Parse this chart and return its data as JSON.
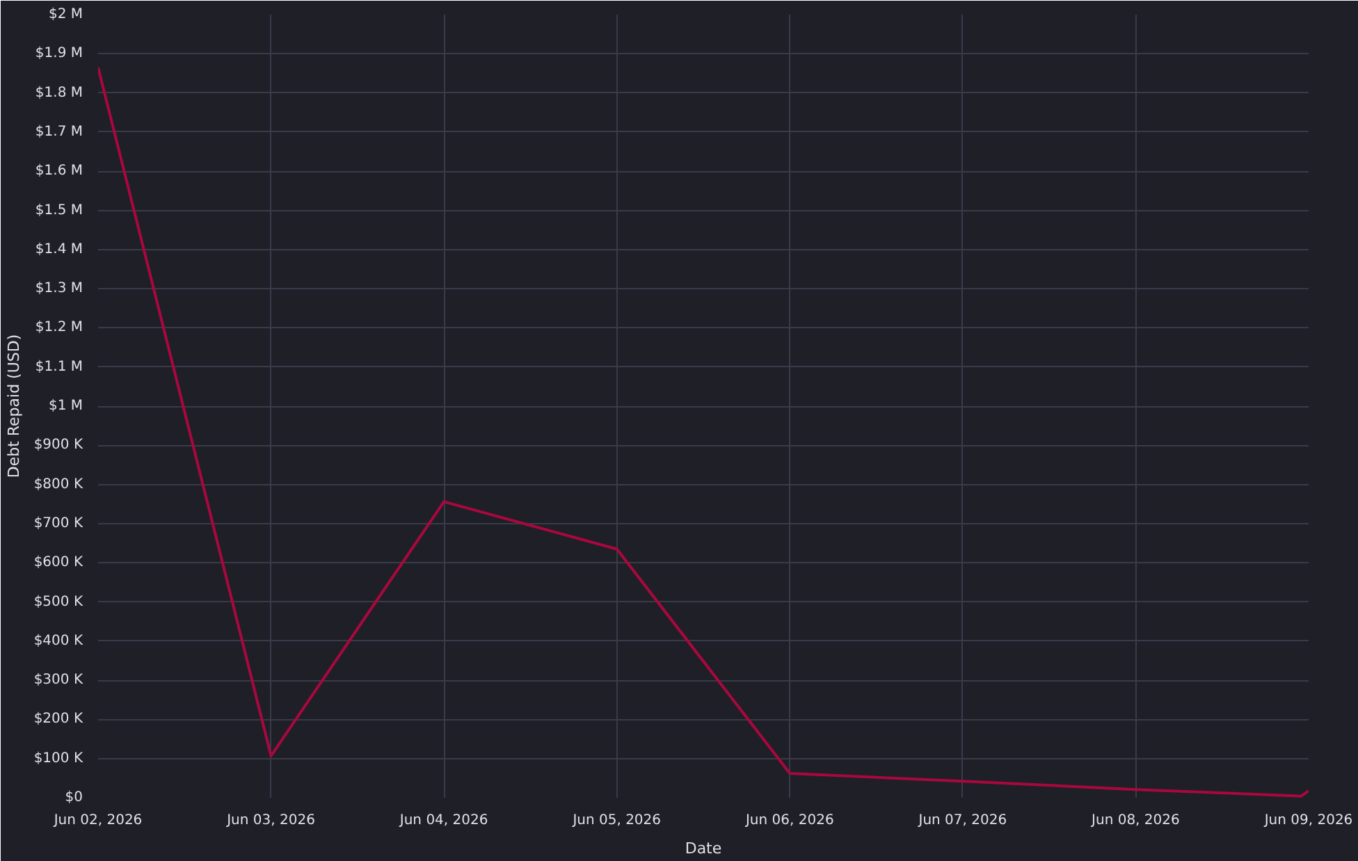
{
  "chart_data": {
    "type": "line",
    "xlabel": "Date",
    "ylabel": "Debt Repaid (USD)",
    "x": [
      "2026-06-02",
      "2026-06-03",
      "2026-06-04",
      "2026-06-05",
      "2026-06-06",
      "2026-06-07",
      "2026-06-08",
      "2026-06-08T23:00",
      "2026-06-09"
    ],
    "series": [
      {
        "color": "#a8083d",
        "values": [
          1865000,
          107000,
          756000,
          635000,
          62000,
          42000,
          21000,
          4000,
          18000
        ]
      }
    ],
    "xlim": [
      "2026-06-02",
      "2026-06-09"
    ],
    "xticks": [
      {
        "value": "2026-06-02",
        "label": "Jun 02, 2026"
      },
      {
        "value": "2026-06-03",
        "label": "Jun 03, 2026"
      },
      {
        "value": "2026-06-04",
        "label": "Jun 04, 2026"
      },
      {
        "value": "2026-06-05",
        "label": "Jun 05, 2026"
      },
      {
        "value": "2026-06-06",
        "label": "Jun 06, 2026"
      },
      {
        "value": "2026-06-07",
        "label": "Jun 07, 2026"
      },
      {
        "value": "2026-06-08",
        "label": "Jun 08, 2026"
      },
      {
        "value": "2026-06-09",
        "label": "Jun 09, 2026"
      }
    ],
    "ylim": [
      0,
      2000000
    ],
    "yticks": [
      {
        "value": 0,
        "label": "$0"
      },
      {
        "value": 100000,
        "label": "$100 K"
      },
      {
        "value": 200000,
        "label": "$200 K"
      },
      {
        "value": 300000,
        "label": "$300 K"
      },
      {
        "value": 400000,
        "label": "$400 K"
      },
      {
        "value": 500000,
        "label": "$500 K"
      },
      {
        "value": 600000,
        "label": "$600 K"
      },
      {
        "value": 700000,
        "label": "$700 K"
      },
      {
        "value": 800000,
        "label": "$800 K"
      },
      {
        "value": 900000,
        "label": "$900 K"
      },
      {
        "value": 1000000,
        "label": "$1 M"
      },
      {
        "value": 1100000,
        "label": "$1.1 M"
      },
      {
        "value": 1200000,
        "label": "$1.2 M"
      },
      {
        "value": 1300000,
        "label": "$1.3 M"
      },
      {
        "value": 1400000,
        "label": "$1.4 M"
      },
      {
        "value": 1500000,
        "label": "$1.5 M"
      },
      {
        "value": 1600000,
        "label": "$1.6 M"
      },
      {
        "value": 1700000,
        "label": "$1.7 M"
      },
      {
        "value": 1800000,
        "label": "$1.8 M"
      },
      {
        "value": 1900000,
        "label": "$1.9 M"
      },
      {
        "value": 2000000,
        "label": "$2 M"
      }
    ],
    "grid": true,
    "marker": "none",
    "line_style": "solid"
  }
}
